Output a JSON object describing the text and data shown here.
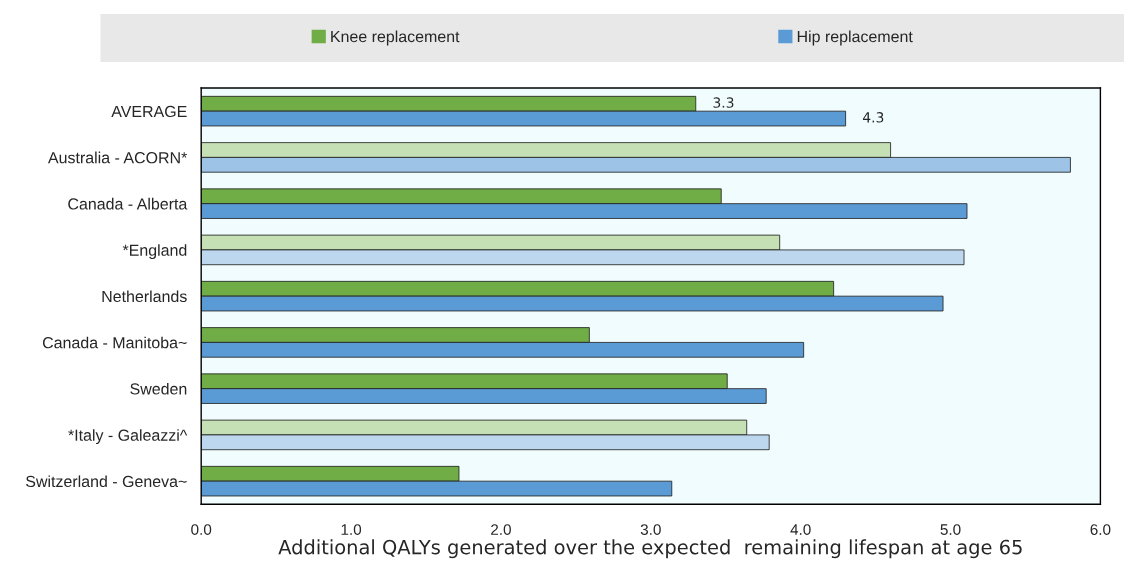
{
  "chart_data": {
    "type": "bar",
    "orientation": "horizontal",
    "xlabel": "Additional QALYs generated over the expected  remaining lifespan at age 65",
    "categories": [
      "AVERAGE",
      "Australia - ACORN*",
      "Canada - Alberta",
      "*England",
      "Netherlands",
      "Canada - Manitoba~",
      "Sweden",
      "*Italy - Galeazzi^",
      "Switzerland - Geneva~"
    ],
    "series": [
      {
        "name": "Knee replacement",
        "color": "#70ad47",
        "colors": [
          "#70ad47",
          "#c5e0b4",
          "#70ad47",
          "#c5e0b4",
          "#70ad47",
          "#70ad47",
          "#70ad47",
          "#c5e0b4",
          "#70ad47"
        ],
        "values": [
          3.3,
          4.6,
          3.47,
          3.86,
          4.22,
          2.59,
          3.51,
          3.64,
          1.72
        ],
        "value_labels": [
          "3.3",
          null,
          null,
          null,
          null,
          null,
          null,
          null,
          null
        ]
      },
      {
        "name": "Hip replacement",
        "color": "#5b9bd5",
        "colors": [
          "#5b9bd5",
          "#9dc3e6",
          "#5b9bd5",
          "#bdd7ee",
          "#5b9bd5",
          "#5b9bd5",
          "#5b9bd5",
          "#bdd7ee",
          "#5b9bd5"
        ],
        "values": [
          4.3,
          5.8,
          5.11,
          5.09,
          4.95,
          4.02,
          3.77,
          3.79,
          3.14
        ],
        "value_labels": [
          "4.3",
          null,
          null,
          null,
          null,
          null,
          null,
          null,
          null
        ]
      }
    ],
    "xlim": [
      0,
      6
    ],
    "xticks": [
      {
        "value": 0,
        "label": "0.0"
      },
      {
        "value": 1,
        "label": "1.0"
      },
      {
        "value": 2,
        "label": "2.0"
      },
      {
        "value": 3,
        "label": "3.0"
      },
      {
        "value": 4,
        "label": "4.0"
      },
      {
        "value": 5,
        "label": "5.0"
      },
      {
        "value": 6,
        "label": "6.0"
      }
    ],
    "legend": "top",
    "grid": false
  }
}
